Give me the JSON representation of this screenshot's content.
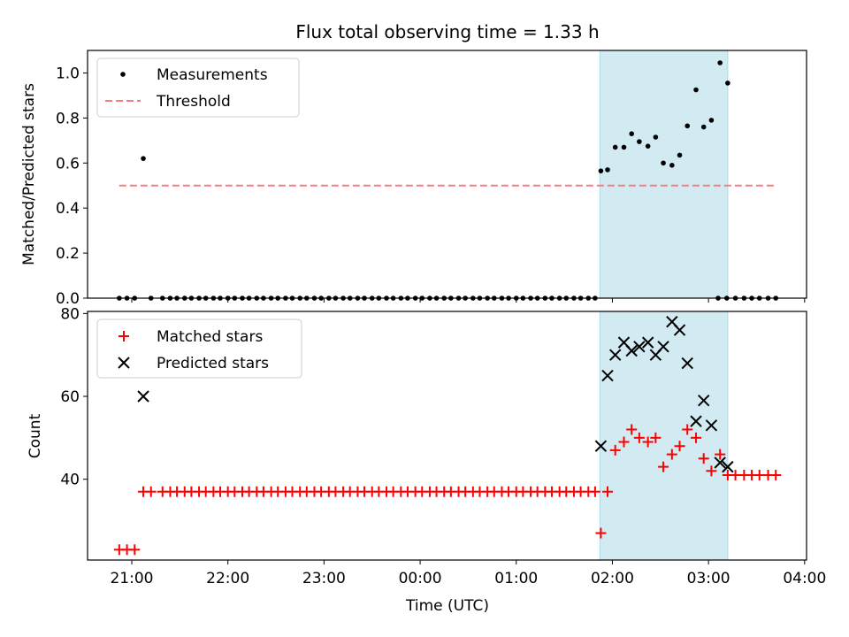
{
  "figure": {
    "title": "Flux total observing time = 1.33 h",
    "xlabel": "Time (UTC)",
    "x_ticks": [
      "21:00",
      "22:00",
      "23:00",
      "00:00",
      "01:00",
      "02:00",
      "03:00",
      "04:00"
    ],
    "x_tick_hours": [
      21,
      22,
      23,
      24,
      25,
      26,
      27,
      28
    ],
    "xlim_hours": [
      20.54,
      28.02
    ],
    "shaded_interval_hours": [
      25.87,
      27.2
    ],
    "shade_color": "#add8e6"
  },
  "chart_data": [
    {
      "type": "scatter",
      "ylabel": "Matched/Predicted stars",
      "ylim": [
        0,
        1.1
      ],
      "y_ticks": [
        "0.0",
        "0.2",
        "0.4",
        "0.6",
        "0.8",
        "1.0"
      ],
      "y_tick_values": [
        0,
        0.2,
        0.4,
        0.6,
        0.8,
        1.0
      ],
      "legend_position": "upper-left",
      "series": [
        {
          "name": "Measurements",
          "kind": "dot",
          "color": "#000000",
          "x_hours": [
            20.87,
            20.95,
            21.03,
            21.12,
            21.2,
            21.32,
            21.4,
            21.47,
            21.55,
            21.62,
            21.7,
            21.77,
            21.85,
            21.92,
            22.0,
            22.07,
            22.15,
            22.22,
            22.3,
            22.37,
            22.45,
            22.52,
            22.6,
            22.67,
            22.75,
            22.82,
            22.9,
            22.97,
            23.05,
            23.12,
            23.2,
            23.27,
            23.35,
            23.42,
            23.5,
            23.57,
            23.65,
            23.72,
            23.8,
            23.87,
            23.95,
            24.02,
            24.1,
            24.17,
            24.25,
            24.32,
            24.4,
            24.47,
            24.55,
            24.62,
            24.7,
            24.77,
            24.85,
            24.92,
            25.0,
            25.07,
            25.15,
            25.22,
            25.3,
            25.37,
            25.45,
            25.52,
            25.6,
            25.67,
            25.75,
            25.82,
            25.88,
            25.95,
            26.03,
            26.12,
            26.2,
            26.28,
            26.37,
            26.45,
            26.53,
            26.62,
            26.7,
            26.78,
            26.87,
            26.95,
            27.03,
            27.12,
            27.2,
            27.28,
            27.37,
            27.45,
            27.53,
            27.62,
            27.7,
            27.1,
            27.19
          ],
          "y": [
            0,
            0,
            0,
            0.62,
            0,
            0,
            0,
            0,
            0,
            0,
            0,
            0,
            0,
            0,
            0,
            0,
            0,
            0,
            0,
            0,
            0,
            0,
            0,
            0,
            0,
            0,
            0,
            0,
            0,
            0,
            0,
            0,
            0,
            0,
            0,
            0,
            0,
            0,
            0,
            0,
            0,
            0,
            0,
            0,
            0,
            0,
            0,
            0,
            0,
            0,
            0,
            0,
            0,
            0,
            0,
            0,
            0,
            0,
            0,
            0,
            0,
            0,
            0,
            0,
            0,
            0,
            0.565,
            0.57,
            0.67,
            0.67,
            0.73,
            0.695,
            0.675,
            0.715,
            0.6,
            0.59,
            0.635,
            0.765,
            0.925,
            0.76,
            0.79,
            1.045,
            0.955,
            0,
            0,
            0,
            0,
            0,
            0,
            0,
            0
          ]
        },
        {
          "name": "Threshold",
          "kind": "dashed-line",
          "color": "#f08080",
          "x_hours": [
            20.87,
            27.7
          ],
          "y": [
            0.5,
            0.5
          ]
        }
      ]
    },
    {
      "type": "scatter",
      "ylabel": "Count",
      "ylim": [
        20.5,
        80.5
      ],
      "y_ticks": [
        "40",
        "60",
        "80"
      ],
      "y_tick_values": [
        40,
        60,
        80
      ],
      "legend_position": "upper-left",
      "series": [
        {
          "name": "Matched stars",
          "kind": "plus",
          "color": "#ff0000",
          "x_hours": [
            20.87,
            20.95,
            21.03,
            21.12,
            21.2,
            21.32,
            21.4,
            21.47,
            21.55,
            21.62,
            21.7,
            21.77,
            21.85,
            21.92,
            22.0,
            22.07,
            22.15,
            22.22,
            22.3,
            22.37,
            22.45,
            22.52,
            22.6,
            22.67,
            22.75,
            22.82,
            22.9,
            22.97,
            23.05,
            23.12,
            23.2,
            23.27,
            23.35,
            23.42,
            23.5,
            23.57,
            23.65,
            23.72,
            23.8,
            23.87,
            23.95,
            24.02,
            24.1,
            24.17,
            24.25,
            24.32,
            24.4,
            24.47,
            24.55,
            24.62,
            24.7,
            24.77,
            24.85,
            24.92,
            25.0,
            25.07,
            25.15,
            25.22,
            25.3,
            25.37,
            25.45,
            25.52,
            25.6,
            25.67,
            25.75,
            25.82,
            25.88,
            25.95,
            26.03,
            26.12,
            26.2,
            26.28,
            26.37,
            26.45,
            26.53,
            26.62,
            26.7,
            26.78,
            26.87,
            26.95,
            27.03,
            27.12,
            27.2,
            27.28,
            27.37,
            27.45,
            27.53,
            27.62,
            27.7
          ],
          "y": [
            23,
            23,
            23,
            37,
            37,
            37,
            37,
            37,
            37,
            37,
            37,
            37,
            37,
            37,
            37,
            37,
            37,
            37,
            37,
            37,
            37,
            37,
            37,
            37,
            37,
            37,
            37,
            37,
            37,
            37,
            37,
            37,
            37,
            37,
            37,
            37,
            37,
            37,
            37,
            37,
            37,
            37,
            37,
            37,
            37,
            37,
            37,
            37,
            37,
            37,
            37,
            37,
            37,
            37,
            37,
            37,
            37,
            37,
            37,
            37,
            37,
            37,
            37,
            37,
            37,
            37,
            27,
            37,
            47,
            49,
            52,
            50,
            49,
            50,
            43,
            46,
            48,
            52,
            50,
            45,
            42,
            46,
            41,
            41,
            41,
            41,
            41,
            41,
            41
          ]
        },
        {
          "name": "Predicted stars",
          "kind": "x",
          "color": "#000000",
          "x_hours": [
            21.12,
            25.88,
            25.95,
            26.03,
            26.12,
            26.2,
            26.28,
            26.37,
            26.45,
            26.53,
            26.62,
            26.7,
            26.78,
            26.87,
            26.95,
            27.03,
            27.12,
            27.2
          ],
          "y": [
            60,
            48,
            65,
            70,
            73,
            71,
            72,
            73,
            70,
            72,
            78,
            76,
            68,
            54,
            59,
            53,
            44,
            43
          ]
        }
      ]
    }
  ]
}
